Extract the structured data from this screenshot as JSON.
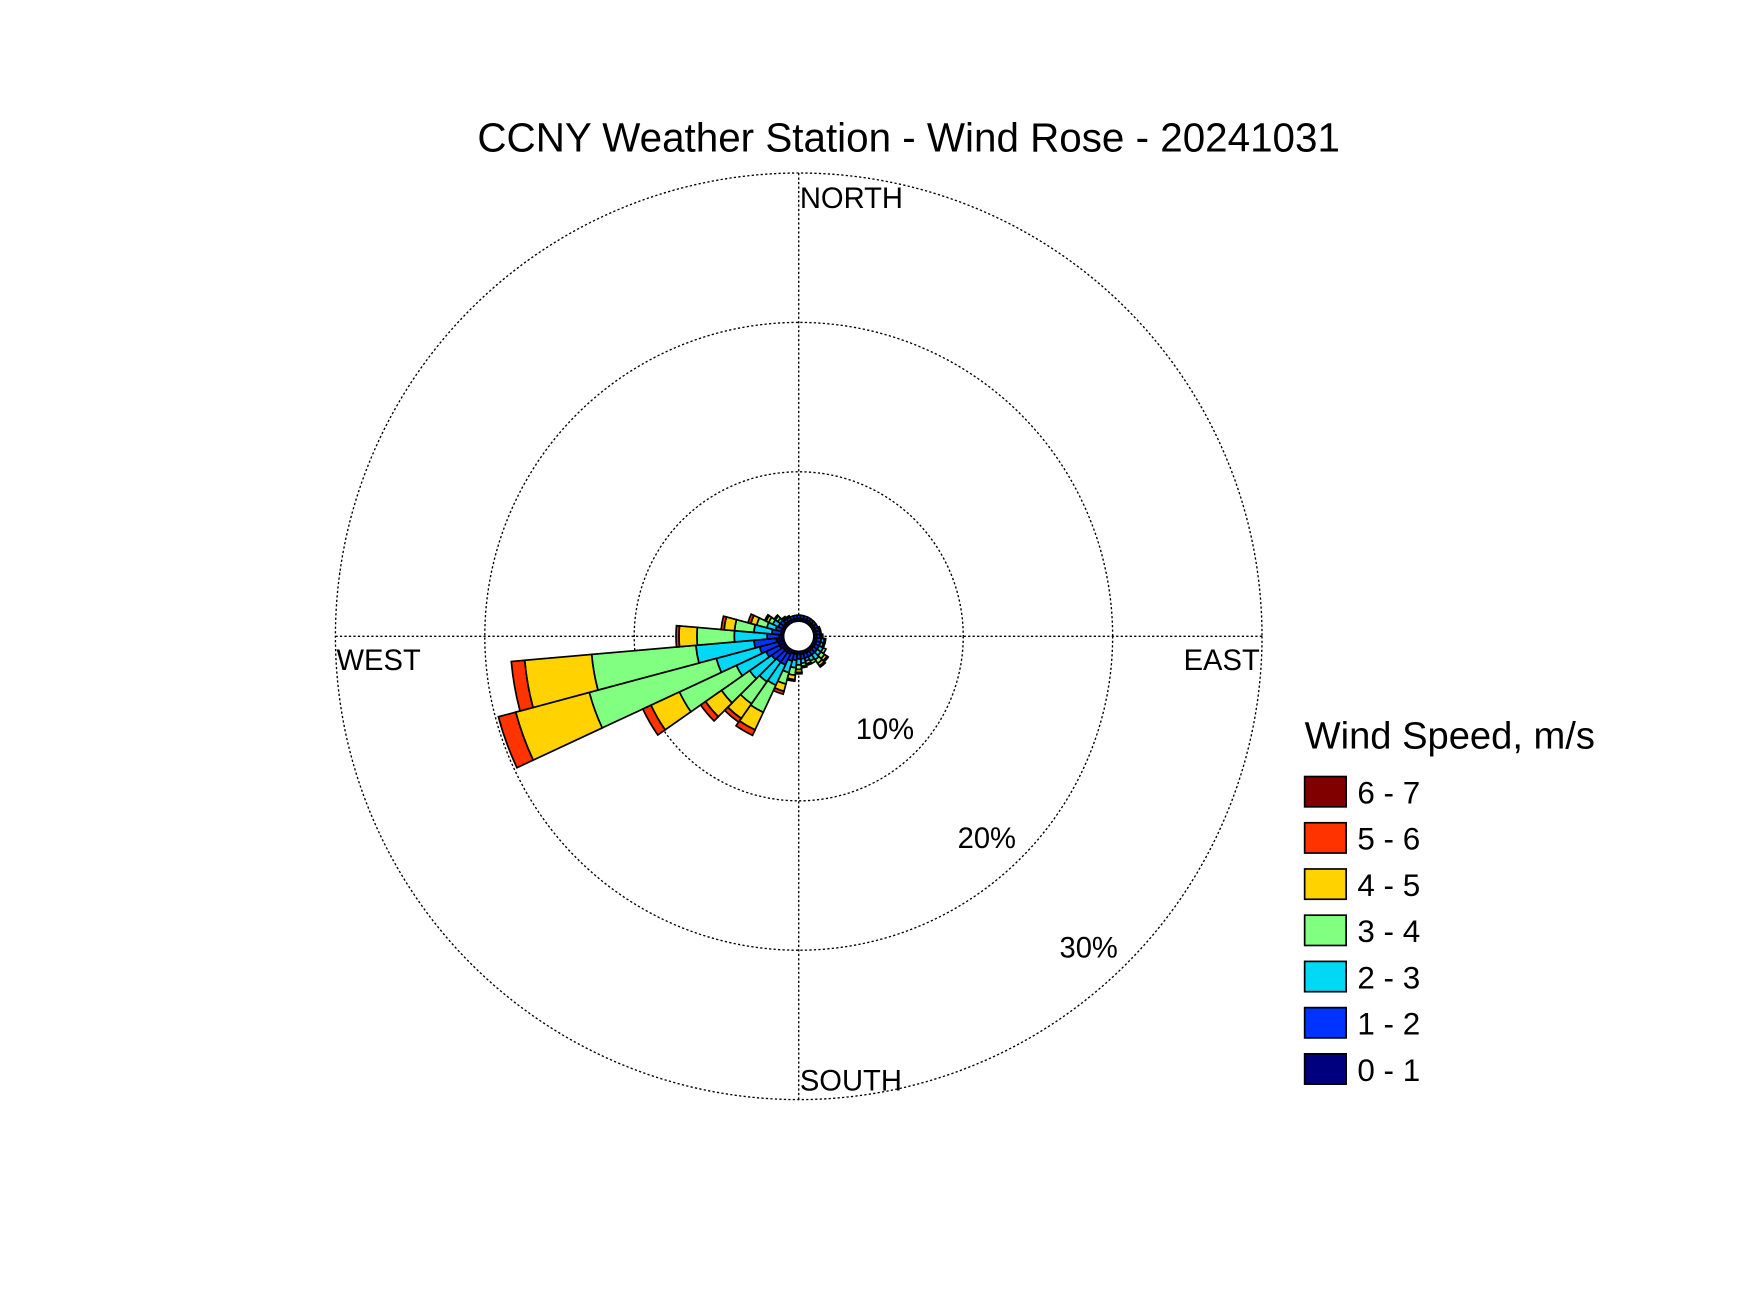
{
  "chart_data": {
    "type": "windrose",
    "title": "CCNY Weather Station - Wind Rose - 20241031",
    "direction_labels": [
      "NORTH",
      "EAST",
      "SOUTH",
      "WEST"
    ],
    "legend_title": "Wind Speed, m/s",
    "categories": [
      null,
      null,
      null,
      null,
      null,
      null,
      null,
      null,
      null,
      null,
      null,
      null,
      null,
      null,
      null,
      null,
      null,
      null,
      null,
      null,
      null,
      null,
      null,
      null,
      null,
      null,
      null,
      null,
      null,
      null,
      null,
      null,
      null,
      null,
      null,
      null
    ],
    "rlim": [
      0,
      30
    ],
    "rticks": [
      {
        "value": 10,
        "label": "10%"
      },
      {
        "value": 20,
        "label": "20%"
      },
      {
        "value": 30,
        "label": "30%"
      }
    ],
    "grid": true,
    "series": [
      {
        "name": "0 - 1",
        "color": "#00007f",
        "values": [
          0.2,
          0.2,
          0.2,
          0.2,
          0.2,
          0.2,
          0.2,
          0.2,
          0.2,
          0.2,
          0.2,
          0.2,
          0.2,
          0.2,
          0.2,
          0.2,
          0.2,
          0.2,
          0.2,
          0.2,
          0.2,
          0.3,
          0.3,
          0.3,
          0.4,
          0.4,
          0.5,
          0.3,
          0.2,
          0.2,
          0.2,
          0.2,
          0.2,
          0.2,
          0.2,
          0.2
        ]
      },
      {
        "name": "1 - 2",
        "color": "#0033ff",
        "values": [
          0.2,
          0.2,
          0.2,
          0.2,
          0.2,
          0.2,
          0.2,
          0.2,
          0.2,
          0.2,
          0.3,
          0.3,
          0.3,
          0.3,
          0.3,
          0.3,
          0.3,
          0.3,
          0.3,
          0.4,
          0.5,
          0.8,
          0.8,
          0.9,
          1.0,
          1.3,
          1.5,
          0.8,
          0.6,
          0.4,
          0.3,
          0.3,
          0.2,
          0.2,
          0.2,
          0.2
        ]
      },
      {
        "name": "2 - 3",
        "color": "#00d8f5",
        "values": [
          0,
          0,
          0,
          0,
          0,
          0,
          0,
          0.1,
          0.1,
          0.1,
          0.2,
          0.2,
          0.3,
          0.3,
          0.4,
          0.3,
          0.2,
          0.3,
          0.4,
          0.5,
          0.8,
          1.5,
          1.6,
          1.8,
          2.2,
          3.0,
          3.9,
          2.2,
          1.2,
          0.6,
          0.4,
          0.2,
          0.1,
          0.1,
          0,
          0
        ]
      },
      {
        "name": "3 - 4",
        "color": "#80ff80",
        "values": [
          0,
          0,
          0,
          0,
          0,
          0,
          0,
          0,
          0,
          0.1,
          0.1,
          0.1,
          0.2,
          0.3,
          0.3,
          0.2,
          0.2,
          0.2,
          0.3,
          0.5,
          0.8,
          2.0,
          1.8,
          2.3,
          4.2,
          8.8,
          7.0,
          2.5,
          1.3,
          0.7,
          0.3,
          0.2,
          0.1,
          0,
          0,
          0
        ]
      },
      {
        "name": "4 - 5",
        "color": "#ffd200",
        "values": [
          0,
          0,
          0,
          0,
          0,
          0,
          0,
          0,
          0,
          0,
          0,
          0,
          0,
          0.2,
          0.2,
          0,
          0.1,
          0.1,
          0.2,
          0.3,
          0.5,
          1.3,
          1.2,
          1.3,
          2.1,
          5.1,
          4.5,
          1.2,
          0.7,
          0.4,
          0.2,
          0.1,
          0,
          0,
          0,
          0
        ]
      },
      {
        "name": "5 - 6",
        "color": "#ff3300",
        "values": [
          0,
          0,
          0,
          0,
          0,
          0,
          0,
          0,
          0,
          0,
          0,
          0,
          0,
          0.1,
          0.1,
          0,
          0,
          0,
          0.1,
          0.1,
          0.2,
          0.4,
          0.3,
          0.4,
          0.6,
          1.2,
          0.9,
          0.2,
          0.2,
          0.2,
          0.1,
          0,
          0,
          0,
          0,
          0
        ]
      },
      {
        "name": "6 - 7",
        "color": "#800000",
        "values": [
          0,
          0,
          0,
          0,
          0,
          0,
          0,
          0,
          0,
          0,
          0,
          0,
          0,
          0,
          0,
          0,
          0,
          0,
          0,
          0,
          0,
          0,
          0,
          0,
          0,
          0,
          0,
          0,
          0,
          0,
          0,
          0,
          0,
          0,
          0,
          0
        ]
      }
    ]
  }
}
